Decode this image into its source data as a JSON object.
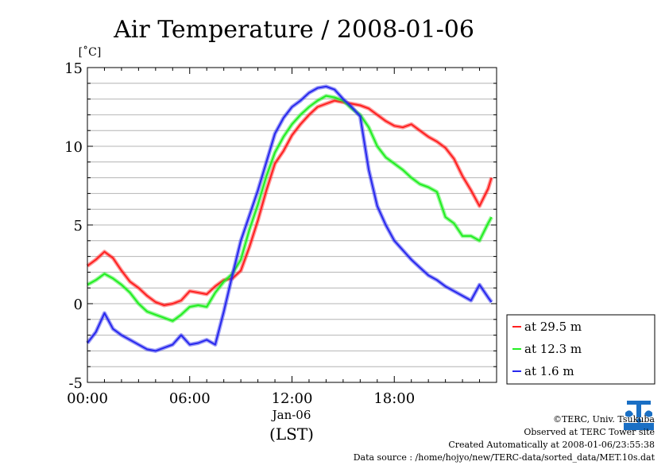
{
  "chart_data": {
    "type": "line",
    "title": "Air Temperature / 2008-01-06",
    "ylabel": "[˚C]",
    "xlabel": "(LST)",
    "date_label": "Jan-06",
    "ylim": [
      -5,
      15
    ],
    "xlim": [
      0,
      24
    ],
    "x_tick_labels": [
      "00:00",
      "06:00",
      "12:00",
      "18:00"
    ],
    "y_tick_labels": [
      "15",
      "10",
      "5",
      "0",
      "-5"
    ],
    "grid": "horizontal",
    "legend_position": "right",
    "x_unit": "hour",
    "series": [
      {
        "name": "at 29.5 m",
        "color": "#ff2020",
        "x": [
          0,
          0.5,
          1.0,
          1.5,
          2.0,
          2.5,
          3.0,
          3.5,
          4.0,
          4.5,
          5.0,
          5.5,
          6.0,
          6.5,
          7.0,
          7.5,
          8.0,
          8.5,
          9.0,
          9.5,
          10.0,
          10.5,
          11.0,
          11.5,
          12.0,
          12.5,
          13.0,
          13.5,
          14.0,
          14.5,
          15.0,
          15.5,
          16.0,
          16.5,
          17.0,
          17.5,
          18.0,
          18.5,
          19.0,
          19.5,
          20.0,
          20.5,
          21.0,
          21.5,
          22.0,
          22.5,
          23.0,
          23.5,
          23.7
        ],
        "y": [
          2.4,
          2.8,
          3.3,
          2.9,
          2.1,
          1.4,
          1.0,
          0.5,
          0.1,
          -0.1,
          0.0,
          0.2,
          0.8,
          0.7,
          0.6,
          1.1,
          1.5,
          1.6,
          2.1,
          3.6,
          5.3,
          7.2,
          8.9,
          9.7,
          10.7,
          11.4,
          12.0,
          12.5,
          12.7,
          12.9,
          12.8,
          12.7,
          12.6,
          12.4,
          12.0,
          11.6,
          11.3,
          11.2,
          11.4,
          11.0,
          10.6,
          10.3,
          9.9,
          9.2,
          8.1,
          7.2,
          6.2,
          7.3,
          8.0
        ]
      },
      {
        "name": "at 12.3 m",
        "color": "#22ee22",
        "x": [
          0,
          0.5,
          1.0,
          1.5,
          2.0,
          2.5,
          3.0,
          3.5,
          4.0,
          4.5,
          5.0,
          5.5,
          6.0,
          6.5,
          7.0,
          7.5,
          8.0,
          8.5,
          9.0,
          9.5,
          10.0,
          10.5,
          11.0,
          11.5,
          12.0,
          12.5,
          13.0,
          13.5,
          14.0,
          14.5,
          15.0,
          15.5,
          16.0,
          16.5,
          17.0,
          17.5,
          18.0,
          18.5,
          19.0,
          19.5,
          20.0,
          20.5,
          21.0,
          21.5,
          22.0,
          22.5,
          23.0,
          23.5,
          23.7
        ],
        "y": [
          1.2,
          1.5,
          1.9,
          1.6,
          1.2,
          0.7,
          0.0,
          -0.5,
          -0.7,
          -0.9,
          -1.1,
          -0.7,
          -0.2,
          -0.1,
          -0.2,
          0.7,
          1.4,
          1.9,
          2.8,
          4.7,
          6.3,
          8.1,
          9.6,
          10.6,
          11.4,
          12.0,
          12.5,
          12.9,
          13.2,
          13.1,
          12.9,
          12.4,
          12.0,
          11.2,
          10.0,
          9.3,
          8.9,
          8.5,
          8.0,
          7.6,
          7.4,
          7.1,
          5.5,
          5.1,
          4.3,
          4.3,
          4.0,
          5.1,
          5.5
        ]
      },
      {
        "name": "at 1.6 m",
        "color": "#2828ee",
        "x": [
          0,
          0.5,
          1.0,
          1.5,
          2.0,
          2.5,
          3.0,
          3.5,
          4.0,
          4.5,
          5.0,
          5.5,
          6.0,
          6.5,
          7.0,
          7.5,
          8.0,
          8.5,
          9.0,
          9.5,
          10.0,
          10.5,
          11.0,
          11.5,
          12.0,
          12.5,
          13.0,
          13.5,
          14.0,
          14.5,
          15.0,
          15.5,
          16.0,
          16.5,
          17.0,
          17.5,
          18.0,
          18.5,
          19.0,
          19.5,
          20.0,
          20.5,
          21.0,
          21.5,
          22.0,
          22.5,
          23.0,
          23.5,
          23.7
        ],
        "y": [
          -2.5,
          -1.8,
          -0.6,
          -1.6,
          -2.0,
          -2.3,
          -2.6,
          -2.9,
          -3.0,
          -2.8,
          -2.6,
          -2.0,
          -2.6,
          -2.5,
          -2.3,
          -2.6,
          -0.5,
          1.8,
          4.0,
          5.6,
          7.2,
          9.0,
          10.8,
          11.8,
          12.5,
          12.9,
          13.4,
          13.7,
          13.8,
          13.6,
          13.0,
          12.5,
          11.9,
          8.5,
          6.2,
          5.0,
          4.0,
          3.4,
          2.8,
          2.3,
          1.8,
          1.5,
          1.1,
          0.8,
          0.5,
          0.2,
          1.2,
          0.4,
          0.1
        ]
      }
    ]
  },
  "credits": {
    "copyright": "©TERC, Univ. Tsukuba",
    "observed": "Observed at TERC Tower site",
    "created": "Created Automatically at 2008-01-06/23:55:38",
    "source": "Data source : /home/hojyo/new/TERC-data/sorted_data/MET.10s.dat"
  },
  "logo": {
    "text": "TERC",
    "color": "#1a6fc4"
  }
}
